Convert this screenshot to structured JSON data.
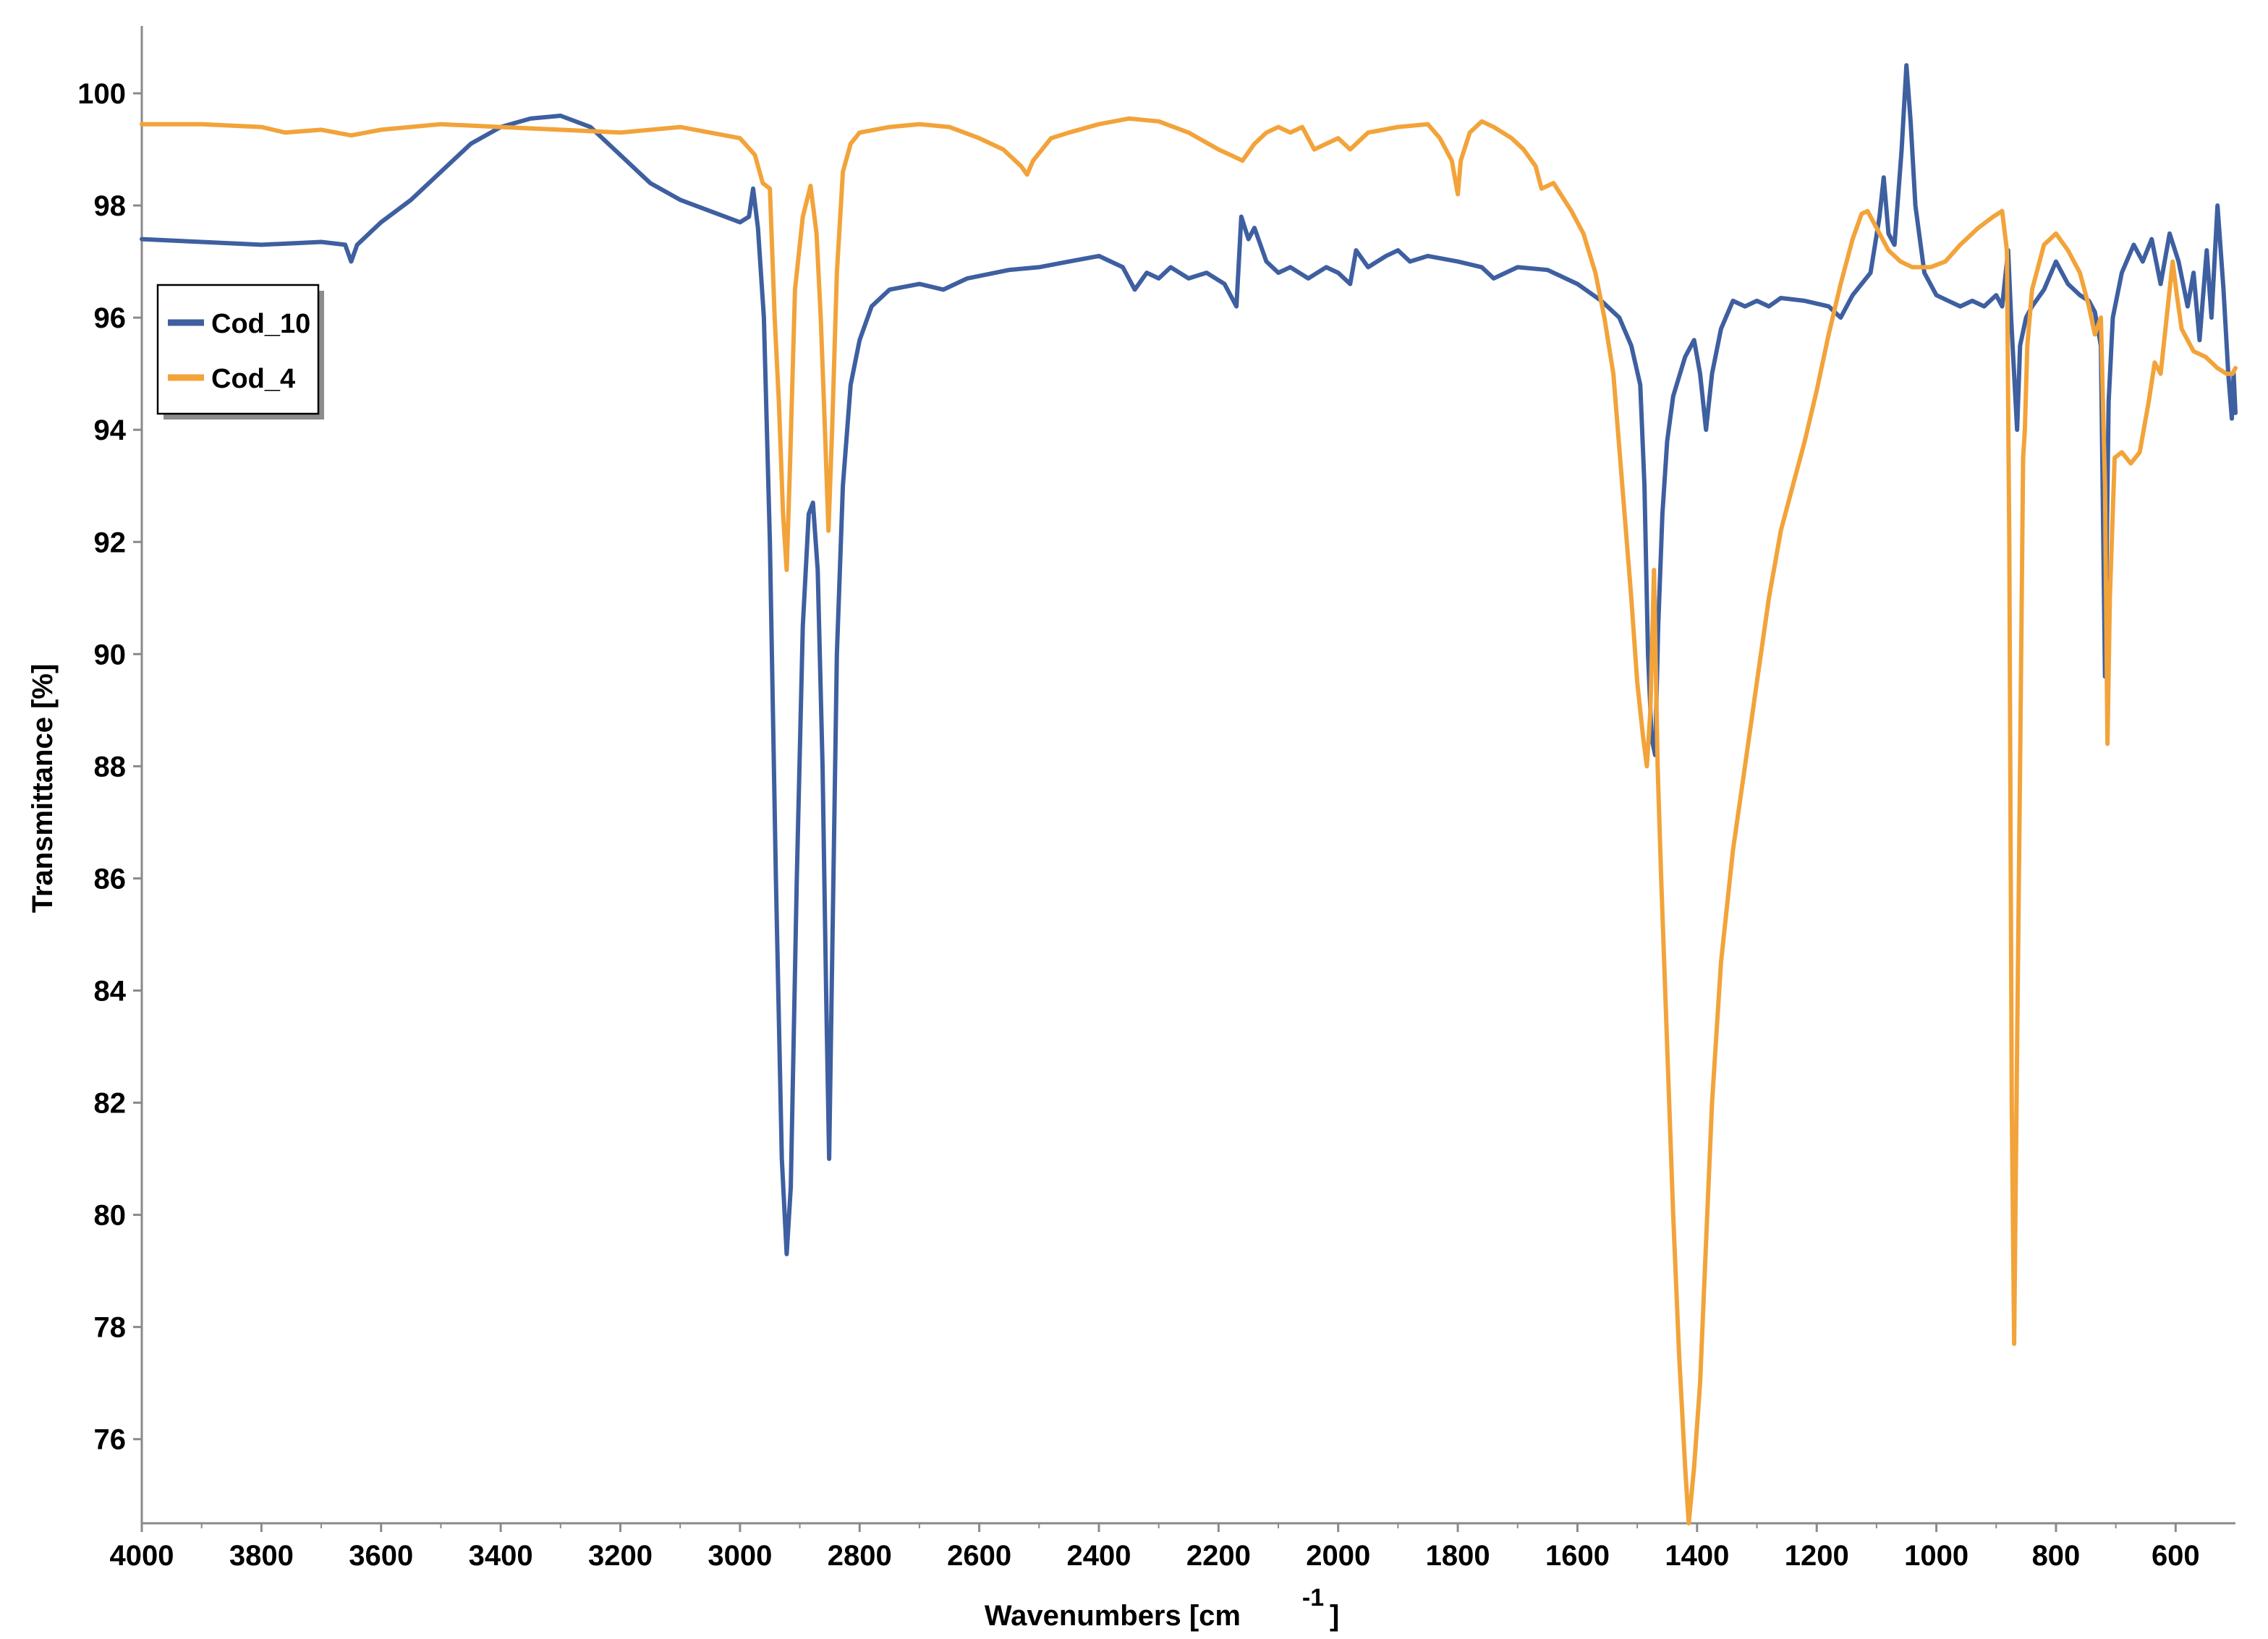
{
  "chart_data": {
    "type": "line",
    "title": "",
    "xlabel": "Wavenumbers [cm",
    "xlabel_superscript": "-1",
    "xlabel_suffix": "]",
    "ylabel": "Transmittance [%]",
    "xlim": [
      4000,
      500
    ],
    "ylim": [
      74.5,
      101.2
    ],
    "x_reversed": true,
    "x_ticks": [
      4000,
      3800,
      3600,
      3400,
      3200,
      3000,
      2800,
      2600,
      2400,
      2200,
      2000,
      1800,
      1600,
      1400,
      1200,
      1000,
      800,
      600
    ],
    "y_ticks": [
      76,
      78,
      80,
      82,
      84,
      86,
      88,
      90,
      92,
      94,
      96,
      98,
      100
    ],
    "grid": false,
    "legend_position": "top-left",
    "series": [
      {
        "name": "Cod_10",
        "color": "#3E5FA0",
        "points": [
          [
            4000,
            97.4
          ],
          [
            3900,
            97.35
          ],
          [
            3800,
            97.3
          ],
          [
            3700,
            97.35
          ],
          [
            3660,
            97.3
          ],
          [
            3650,
            97.0
          ],
          [
            3640,
            97.3
          ],
          [
            3600,
            97.7
          ],
          [
            3550,
            98.1
          ],
          [
            3500,
            98.6
          ],
          [
            3450,
            99.1
          ],
          [
            3400,
            99.4
          ],
          [
            3350,
            99.55
          ],
          [
            3300,
            99.6
          ],
          [
            3250,
            99.4
          ],
          [
            3200,
            98.9
          ],
          [
            3150,
            98.4
          ],
          [
            3100,
            98.1
          ],
          [
            3050,
            97.9
          ],
          [
            3000,
            97.7
          ],
          [
            2985,
            97.8
          ],
          [
            2978,
            98.3
          ],
          [
            2970,
            97.6
          ],
          [
            2960,
            96.0
          ],
          [
            2950,
            92.0
          ],
          [
            2940,
            86.0
          ],
          [
            2930,
            81.0
          ],
          [
            2922,
            79.3
          ],
          [
            2915,
            80.5
          ],
          [
            2905,
            86.0
          ],
          [
            2895,
            90.5
          ],
          [
            2885,
            92.5
          ],
          [
            2878,
            92.7
          ],
          [
            2870,
            91.5
          ],
          [
            2862,
            88.0
          ],
          [
            2856,
            84.0
          ],
          [
            2851,
            81.0
          ],
          [
            2846,
            84.5
          ],
          [
            2838,
            90.0
          ],
          [
            2828,
            93.0
          ],
          [
            2815,
            94.8
          ],
          [
            2800,
            95.6
          ],
          [
            2780,
            96.2
          ],
          [
            2750,
            96.5
          ],
          [
            2700,
            96.6
          ],
          [
            2660,
            96.5
          ],
          [
            2620,
            96.7
          ],
          [
            2550,
            96.85
          ],
          [
            2500,
            96.9
          ],
          [
            2450,
            97.0
          ],
          [
            2400,
            97.1
          ],
          [
            2360,
            96.9
          ],
          [
            2340,
            96.5
          ],
          [
            2320,
            96.8
          ],
          [
            2300,
            96.7
          ],
          [
            2280,
            96.9
          ],
          [
            2250,
            96.7
          ],
          [
            2220,
            96.8
          ],
          [
            2190,
            96.6
          ],
          [
            2170,
            96.2
          ],
          [
            2162,
            97.8
          ],
          [
            2150,
            97.4
          ],
          [
            2140,
            97.6
          ],
          [
            2120,
            97.0
          ],
          [
            2100,
            96.8
          ],
          [
            2080,
            96.9
          ],
          [
            2050,
            96.7
          ],
          [
            2020,
            96.9
          ],
          [
            2000,
            96.8
          ],
          [
            1980,
            96.6
          ],
          [
            1970,
            97.2
          ],
          [
            1950,
            96.9
          ],
          [
            1920,
            97.1
          ],
          [
            1900,
            97.2
          ],
          [
            1880,
            97.0
          ],
          [
            1850,
            97.1
          ],
          [
            1800,
            97.0
          ],
          [
            1760,
            96.9
          ],
          [
            1740,
            96.7
          ],
          [
            1700,
            96.9
          ],
          [
            1650,
            96.85
          ],
          [
            1600,
            96.6
          ],
          [
            1560,
            96.3
          ],
          [
            1530,
            96.0
          ],
          [
            1510,
            95.5
          ],
          [
            1495,
            94.8
          ],
          [
            1488,
            93.0
          ],
          [
            1482,
            90.0
          ],
          [
            1476,
            88.5
          ],
          [
            1470,
            88.2
          ],
          [
            1465,
            90.5
          ],
          [
            1458,
            92.5
          ],
          [
            1450,
            93.8
          ],
          [
            1440,
            94.6
          ],
          [
            1420,
            95.3
          ],
          [
            1405,
            95.6
          ],
          [
            1395,
            95.0
          ],
          [
            1385,
            94.0
          ],
          [
            1375,
            95.0
          ],
          [
            1360,
            95.8
          ],
          [
            1340,
            96.3
          ],
          [
            1320,
            96.2
          ],
          [
            1300,
            96.3
          ],
          [
            1280,
            96.2
          ],
          [
            1260,
            96.35
          ],
          [
            1220,
            96.3
          ],
          [
            1180,
            96.2
          ],
          [
            1160,
            96.0
          ],
          [
            1140,
            96.4
          ],
          [
            1110,
            96.8
          ],
          [
            1095,
            97.8
          ],
          [
            1088,
            98.5
          ],
          [
            1080,
            97.5
          ],
          [
            1070,
            97.3
          ],
          [
            1058,
            99.0
          ],
          [
            1050,
            100.5
          ],
          [
            1043,
            99.5
          ],
          [
            1035,
            98.0
          ],
          [
            1020,
            96.8
          ],
          [
            1000,
            96.4
          ],
          [
            980,
            96.3
          ],
          [
            960,
            96.2
          ],
          [
            940,
            96.3
          ],
          [
            920,
            96.2
          ],
          [
            900,
            96.4
          ],
          [
            890,
            96.2
          ],
          [
            880,
            97.2
          ],
          [
            875,
            96.0
          ],
          [
            865,
            94.0
          ],
          [
            860,
            95.5
          ],
          [
            850,
            96.0
          ],
          [
            840,
            96.2
          ],
          [
            820,
            96.5
          ],
          [
            800,
            97.0
          ],
          [
            780,
            96.6
          ],
          [
            760,
            96.4
          ],
          [
            745,
            96.3
          ],
          [
            735,
            96.1
          ],
          [
            725,
            95.5
          ],
          [
            718,
            89.6
          ],
          [
            712,
            94.5
          ],
          [
            705,
            96.0
          ],
          [
            690,
            96.8
          ],
          [
            670,
            97.3
          ],
          [
            655,
            97.0
          ],
          [
            640,
            97.4
          ],
          [
            625,
            96.6
          ],
          [
            610,
            97.5
          ],
          [
            595,
            97.0
          ],
          [
            580,
            96.2
          ],
          [
            570,
            96.8
          ],
          [
            560,
            95.6
          ],
          [
            548,
            97.2
          ],
          [
            540,
            96.0
          ],
          [
            530,
            98.0
          ],
          [
            520,
            96.5
          ],
          [
            512,
            95.0
          ],
          [
            506,
            94.2
          ],
          [
            503,
            95.0
          ],
          [
            500,
            94.3
          ]
        ]
      },
      {
        "name": "Cod_4",
        "color": "#F2A33A",
        "points": [
          [
            4000,
            99.45
          ],
          [
            3900,
            99.45
          ],
          [
            3800,
            99.4
          ],
          [
            3760,
            99.3
          ],
          [
            3700,
            99.35
          ],
          [
            3650,
            99.25
          ],
          [
            3600,
            99.35
          ],
          [
            3500,
            99.45
          ],
          [
            3400,
            99.4
          ],
          [
            3300,
            99.35
          ],
          [
            3200,
            99.3
          ],
          [
            3100,
            99.4
          ],
          [
            3050,
            99.3
          ],
          [
            3000,
            99.2
          ],
          [
            2975,
            98.9
          ],
          [
            2962,
            98.4
          ],
          [
            2950,
            98.3
          ],
          [
            2942,
            96.0
          ],
          [
            2935,
            94.5
          ],
          [
            2928,
            92.5
          ],
          [
            2922,
            91.5
          ],
          [
            2916,
            93.5
          ],
          [
            2908,
            96.5
          ],
          [
            2895,
            97.8
          ],
          [
            2882,
            98.35
          ],
          [
            2872,
            97.5
          ],
          [
            2865,
            96.0
          ],
          [
            2858,
            94.0
          ],
          [
            2852,
            92.2
          ],
          [
            2846,
            94.0
          ],
          [
            2838,
            96.8
          ],
          [
            2828,
            98.6
          ],
          [
            2815,
            99.1
          ],
          [
            2800,
            99.3
          ],
          [
            2750,
            99.4
          ],
          [
            2700,
            99.45
          ],
          [
            2650,
            99.4
          ],
          [
            2600,
            99.2
          ],
          [
            2560,
            99.0
          ],
          [
            2530,
            98.7
          ],
          [
            2520,
            98.55
          ],
          [
            2510,
            98.8
          ],
          [
            2480,
            99.2
          ],
          [
            2450,
            99.3
          ],
          [
            2400,
            99.45
          ],
          [
            2350,
            99.55
          ],
          [
            2300,
            99.5
          ],
          [
            2250,
            99.3
          ],
          [
            2200,
            99.0
          ],
          [
            2180,
            98.9
          ],
          [
            2160,
            98.8
          ],
          [
            2140,
            99.1
          ],
          [
            2120,
            99.3
          ],
          [
            2100,
            99.4
          ],
          [
            2080,
            99.3
          ],
          [
            2060,
            99.4
          ],
          [
            2040,
            99.0
          ],
          [
            2000,
            99.2
          ],
          [
            1980,
            99.0
          ],
          [
            1950,
            99.3
          ],
          [
            1900,
            99.4
          ],
          [
            1850,
            99.45
          ],
          [
            1830,
            99.2
          ],
          [
            1810,
            98.8
          ],
          [
            1800,
            98.2
          ],
          [
            1795,
            98.8
          ],
          [
            1780,
            99.3
          ],
          [
            1760,
            99.5
          ],
          [
            1740,
            99.4
          ],
          [
            1710,
            99.2
          ],
          [
            1690,
            99.0
          ],
          [
            1670,
            98.7
          ],
          [
            1660,
            98.3
          ],
          [
            1640,
            98.4
          ],
          [
            1610,
            97.9
          ],
          [
            1590,
            97.5
          ],
          [
            1570,
            96.8
          ],
          [
            1555,
            96.0
          ],
          [
            1540,
            95.0
          ],
          [
            1525,
            93.0
          ],
          [
            1510,
            91.0
          ],
          [
            1500,
            89.5
          ],
          [
            1490,
            88.5
          ],
          [
            1484,
            88.0
          ],
          [
            1478,
            89.0
          ],
          [
            1472,
            91.5
          ],
          [
            1466,
            88.0
          ],
          [
            1460,
            86.0
          ],
          [
            1450,
            83.0
          ],
          [
            1440,
            80.0
          ],
          [
            1430,
            77.5
          ],
          [
            1420,
            75.5
          ],
          [
            1414,
            74.5
          ],
          [
            1405,
            75.5
          ],
          [
            1395,
            77.0
          ],
          [
            1385,
            79.5
          ],
          [
            1375,
            82.0
          ],
          [
            1360,
            84.5
          ],
          [
            1340,
            86.5
          ],
          [
            1320,
            88.0
          ],
          [
            1300,
            89.5
          ],
          [
            1280,
            91.0
          ],
          [
            1260,
            92.2
          ],
          [
            1240,
            93.0
          ],
          [
            1220,
            93.8
          ],
          [
            1200,
            94.7
          ],
          [
            1180,
            95.7
          ],
          [
            1160,
            96.6
          ],
          [
            1140,
            97.4
          ],
          [
            1125,
            97.85
          ],
          [
            1115,
            97.9
          ],
          [
            1100,
            97.6
          ],
          [
            1080,
            97.2
          ],
          [
            1060,
            97.0
          ],
          [
            1040,
            96.9
          ],
          [
            1010,
            96.9
          ],
          [
            985,
            97.0
          ],
          [
            960,
            97.3
          ],
          [
            930,
            97.6
          ],
          [
            905,
            97.8
          ],
          [
            890,
            97.9
          ],
          [
            882,
            97.2
          ],
          [
            878,
            92.0
          ],
          [
            874,
            82.0
          ],
          [
            870,
            77.7
          ],
          [
            866,
            82.0
          ],
          [
            860,
            88.0
          ],
          [
            855,
            93.5
          ],
          [
            852,
            94.0
          ],
          [
            848,
            95.5
          ],
          [
            840,
            96.5
          ],
          [
            820,
            97.3
          ],
          [
            800,
            97.5
          ],
          [
            780,
            97.2
          ],
          [
            760,
            96.8
          ],
          [
            745,
            96.2
          ],
          [
            735,
            95.7
          ],
          [
            725,
            96.0
          ],
          [
            718,
            93.0
          ],
          [
            714,
            88.4
          ],
          [
            710,
            91.0
          ],
          [
            702,
            93.5
          ],
          [
            690,
            93.6
          ],
          [
            675,
            93.4
          ],
          [
            660,
            93.6
          ],
          [
            645,
            94.5
          ],
          [
            635,
            95.2
          ],
          [
            625,
            95.0
          ],
          [
            615,
            96.0
          ],
          [
            605,
            97.0
          ],
          [
            598,
            96.4
          ],
          [
            590,
            95.8
          ],
          [
            570,
            95.4
          ],
          [
            550,
            95.3
          ],
          [
            530,
            95.1
          ],
          [
            515,
            95.0
          ],
          [
            505,
            95.0
          ],
          [
            500,
            95.1
          ]
        ]
      }
    ]
  }
}
